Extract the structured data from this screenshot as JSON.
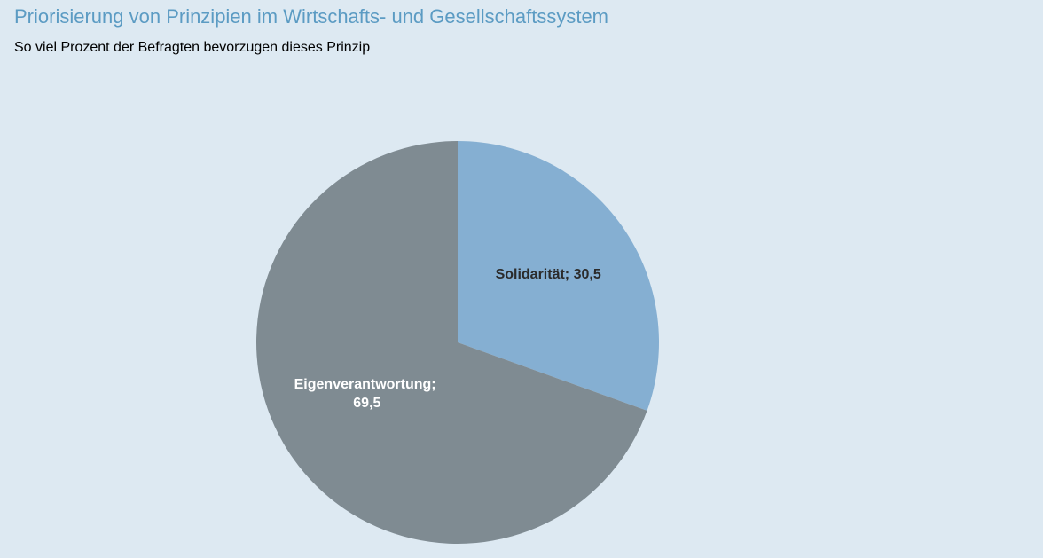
{
  "chart_data": {
    "type": "pie",
    "title": "Priorisierung von Prinzipien im Wirtschafts- und Gesellschaftssystem",
    "subtitle": "So viel Prozent der Befragten bevorzugen dieses Prinzip",
    "values": [
      30.5,
      69.5
    ],
    "value_labels": [
      "Solidarität; 30,5",
      "Eigenverantwortung; 69,5"
    ],
    "colors": [
      "#85afd2",
      "#7f8b92"
    ],
    "label_colors": [
      "#2b2b2b",
      "#ffffff"
    ]
  }
}
